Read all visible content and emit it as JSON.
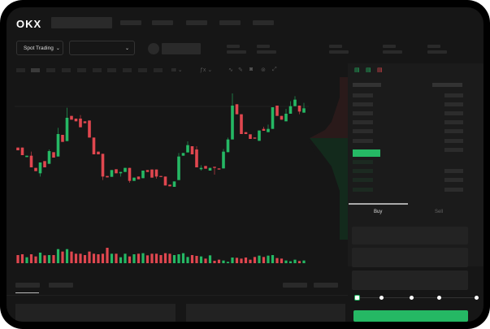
{
  "brand": {
    "logo": "OKX"
  },
  "toolbar": {
    "market_select": "Spot Trading",
    "pair_chevron": "chevron-down-icon"
  },
  "order_form": {
    "tabs": [
      "Buy",
      "Sell"
    ],
    "active_tab": "Buy",
    "leverage_slider": 0
  },
  "colors": {
    "up": "#25b864",
    "down": "#e0474f",
    "bg": "#161616",
    "panel": "#232323"
  },
  "chart_data": {
    "type": "candlestick",
    "ohlc": [
      [
        185,
        185,
        175,
        175
      ],
      [
        185,
        185,
        157,
        157
      ],
      [
        150,
        155,
        150,
        155
      ],
      [
        155,
        170,
        112,
        112
      ],
      [
        110,
        110,
        98,
        98
      ],
      [
        90,
        130,
        78,
        130
      ],
      [
        135,
        135,
        112,
        112
      ],
      [
        125,
        178,
        125,
        172
      ],
      [
        168,
        168,
        148,
        148
      ],
      [
        152,
        258,
        152,
        235
      ],
      [
        232,
        232,
        206,
        206
      ],
      [
        209,
        332,
        209,
        295
      ],
      [
        302,
        302,
        288,
        288
      ],
      [
        292,
        292,
        282,
        282
      ],
      [
        292,
        305,
        260,
        260
      ],
      [
        282,
        282,
        275,
        275
      ],
      [
        285,
        285,
        222,
        222
      ],
      [
        222,
        222,
        160,
        160
      ],
      [
        170,
        170,
        160,
        160
      ],
      [
        162,
        162,
        65,
        78
      ],
      [
        80,
        80,
        75,
        75
      ],
      [
        77,
        102,
        77,
        102
      ],
      [
        105,
        105,
        90,
        90
      ],
      [
        90,
        95,
        78,
        95
      ],
      [
        95,
        110,
        95,
        110
      ],
      [
        110,
        110,
        55,
        62
      ],
      [
        62,
        74,
        62,
        74
      ],
      [
        78,
        78,
        68,
        68
      ],
      [
        72,
        100,
        72,
        100
      ],
      [
        102,
        102,
        95,
        95
      ],
      [
        104,
        104,
        74,
        74
      ],
      [
        104,
        104,
        70,
        78
      ],
      [
        80,
        80,
        77,
        77
      ],
      [
        78,
        78,
        45,
        45
      ],
      [
        48,
        48,
        42,
        42
      ],
      [
        40,
        60,
        40,
        60
      ],
      [
        65,
        165,
        65,
        152
      ],
      [
        155,
        165,
        155,
        165
      ],
      [
        167,
        208,
        167,
        194
      ],
      [
        190,
        190,
        160,
        160
      ],
      [
        178,
        190,
        112,
        112
      ],
      [
        105,
        120,
        100,
        110
      ],
      [
        117,
        117,
        107,
        107
      ],
      [
        100,
        110,
        100,
        110
      ],
      [
        114,
        114,
        85,
        110
      ],
      [
        108,
        108,
        104,
        104
      ],
      [
        108,
        180,
        108,
        170
      ],
      [
        168,
        222,
        168,
        215
      ],
      [
        215,
        385,
        215,
        340
      ],
      [
        345,
        345,
        308,
        308
      ],
      [
        308,
        308,
        235,
        235
      ],
      [
        242,
        242,
        235,
        235
      ],
      [
        234,
        234,
        217,
        217
      ],
      [
        222,
        222,
        218,
        218
      ],
      [
        210,
        248,
        210,
        248
      ],
      [
        254,
        262,
        247,
        247
      ],
      [
        242,
        270,
        242,
        254
      ],
      [
        254,
        334,
        254,
        334
      ],
      [
        340,
        340,
        302,
        302
      ],
      [
        302,
        302,
        288,
        288
      ],
      [
        282,
        328,
        282,
        310
      ],
      [
        310,
        356,
        310,
        338
      ],
      [
        338,
        375,
        338,
        362
      ],
      [
        340,
        340,
        308,
        318
      ],
      [
        314,
        350,
        314,
        330
      ]
    ],
    "volume": [
      30,
      33,
      22,
      33,
      25,
      39,
      29,
      30,
      30,
      52,
      43,
      52,
      43,
      35,
      35,
      30,
      43,
      35,
      33,
      35,
      57,
      35,
      35,
      22,
      35,
      25,
      33,
      35,
      37,
      29,
      35,
      35,
      30,
      37,
      35,
      30,
      33,
      37,
      23,
      30,
      27,
      25,
      17,
      29,
      9,
      13,
      10,
      5,
      21,
      20,
      17,
      21,
      13,
      23,
      28,
      23,
      28,
      30,
      19,
      17,
      10,
      7,
      13,
      8,
      10
    ],
    "grid": false
  }
}
